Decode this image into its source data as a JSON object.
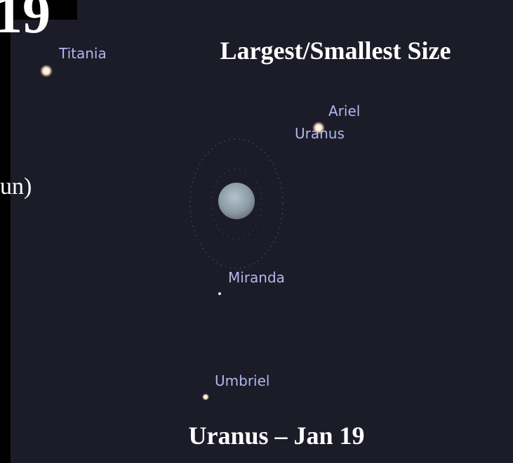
{
  "slide": {
    "title": "Largest/Smallest Size",
    "caption": "Uranus – Jan 19",
    "fragment_top": "19",
    "fragment_left": "un)"
  },
  "sky": {
    "labels": {
      "titania": "Titania",
      "ariel": "Ariel",
      "uranus": "Uranus",
      "miranda": "Miranda",
      "umbriel": "Umbriel"
    }
  }
}
